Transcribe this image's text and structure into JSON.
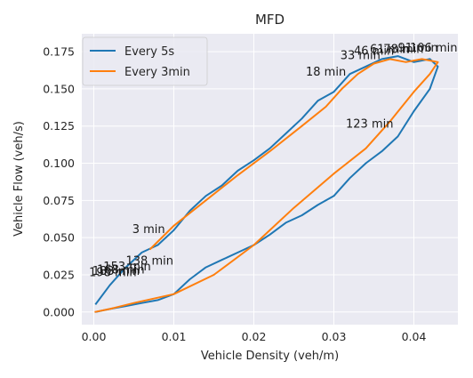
{
  "colors": {
    "plot_bg": "#eaeaf2",
    "grid": "#ffffff",
    "every_5s": "#1f77b4",
    "every_3min": "#ff7f0e"
  },
  "chart_data": {
    "type": "line",
    "title": "MFD",
    "xlabel": "Vehicle Density (veh/m)",
    "ylabel": "Vehicle Flow (veh/s)",
    "xlim": [
      -0.0015,
      0.0455
    ],
    "ylim": [
      -0.0085,
      0.187
    ],
    "xticks": [
      "0.00",
      "0.01",
      "0.02",
      "0.03",
      "0.04"
    ],
    "xtick_values": [
      0.0,
      0.01,
      0.02,
      0.03,
      0.04
    ],
    "yticks": [
      "0.000",
      "0.025",
      "0.050",
      "0.075",
      "0.100",
      "0.125",
      "0.150",
      "0.175"
    ],
    "ytick_values": [
      0.0,
      0.025,
      0.05,
      0.075,
      0.1,
      0.125,
      0.15,
      0.175
    ],
    "grid": true,
    "legend_position": "top-left",
    "series": [
      {
        "name": "Every 5s",
        "color": "#1f77b4",
        "x": [
          0.0002,
          0.002,
          0.004,
          0.006,
          0.008,
          0.01,
          0.012,
          0.014,
          0.016,
          0.018,
          0.02,
          0.022,
          0.024,
          0.026,
          0.028,
          0.03,
          0.032,
          0.034,
          0.036,
          0.038,
          0.04,
          0.042,
          0.043,
          0.042,
          0.04,
          0.038,
          0.036,
          0.034,
          0.032,
          0.03,
          0.028,
          0.026,
          0.024,
          0.022,
          0.02,
          0.018,
          0.016,
          0.014,
          0.012,
          0.01,
          0.008,
          0.006,
          0.004,
          0.002,
          0.0002
        ],
        "y": [
          0.005,
          0.018,
          0.03,
          0.04,
          0.045,
          0.055,
          0.068,
          0.078,
          0.085,
          0.095,
          0.102,
          0.11,
          0.12,
          0.13,
          0.142,
          0.148,
          0.16,
          0.165,
          0.17,
          0.172,
          0.168,
          0.17,
          0.165,
          0.15,
          0.135,
          0.118,
          0.108,
          0.1,
          0.09,
          0.078,
          0.072,
          0.065,
          0.06,
          0.052,
          0.045,
          0.04,
          0.035,
          0.03,
          0.022,
          0.012,
          0.008,
          0.006,
          0.004,
          0.002,
          0.0
        ]
      },
      {
        "name": "Every 3min",
        "color": "#ff7f0e",
        "x": [
          0.007,
          0.01,
          0.014,
          0.018,
          0.022,
          0.026,
          0.029,
          0.031,
          0.033,
          0.035,
          0.037,
          0.039,
          0.041,
          0.043,
          0.042,
          0.04,
          0.037,
          0.034,
          0.03,
          0.025,
          0.02,
          0.015,
          0.01,
          0.005,
          0.002,
          0.0001
        ],
        "y": [
          0.042,
          0.058,
          0.075,
          0.092,
          0.108,
          0.125,
          0.138,
          0.15,
          0.16,
          0.167,
          0.17,
          0.168,
          0.17,
          0.168,
          0.16,
          0.148,
          0.128,
          0.11,
          0.093,
          0.07,
          0.045,
          0.025,
          0.012,
          0.006,
          0.002,
          0.0
        ]
      }
    ],
    "annotations": [
      {
        "text": "3 min",
        "x": 0.0048,
        "y": 0.053
      },
      {
        "text": "18 min",
        "x": 0.0265,
        "y": 0.159
      },
      {
        "text": "33 min",
        "x": 0.0308,
        "y": 0.17
      },
      {
        "text": "46 min",
        "x": 0.0325,
        "y": 0.173
      },
      {
        "text": "61 min",
        "x": 0.0345,
        "y": 0.174
      },
      {
        "text": "78 min",
        "x": 0.0362,
        "y": 0.174
      },
      {
        "text": "91 min",
        "x": 0.038,
        "y": 0.175
      },
      {
        "text": "106 min",
        "x": 0.0395,
        "y": 0.175
      },
      {
        "text": "123 min",
        "x": 0.0315,
        "y": 0.124
      },
      {
        "text": "138 min",
        "x": 0.004,
        "y": 0.032
      },
      {
        "text": "153 min",
        "x": 0.0012,
        "y": 0.028
      },
      {
        "text": "168 min",
        "x": 0.0004,
        "y": 0.026
      },
      {
        "text": "183 min",
        "x": -0.0002,
        "y": 0.025
      },
      {
        "text": "198 min",
        "x": -0.0006,
        "y": 0.024
      }
    ]
  }
}
